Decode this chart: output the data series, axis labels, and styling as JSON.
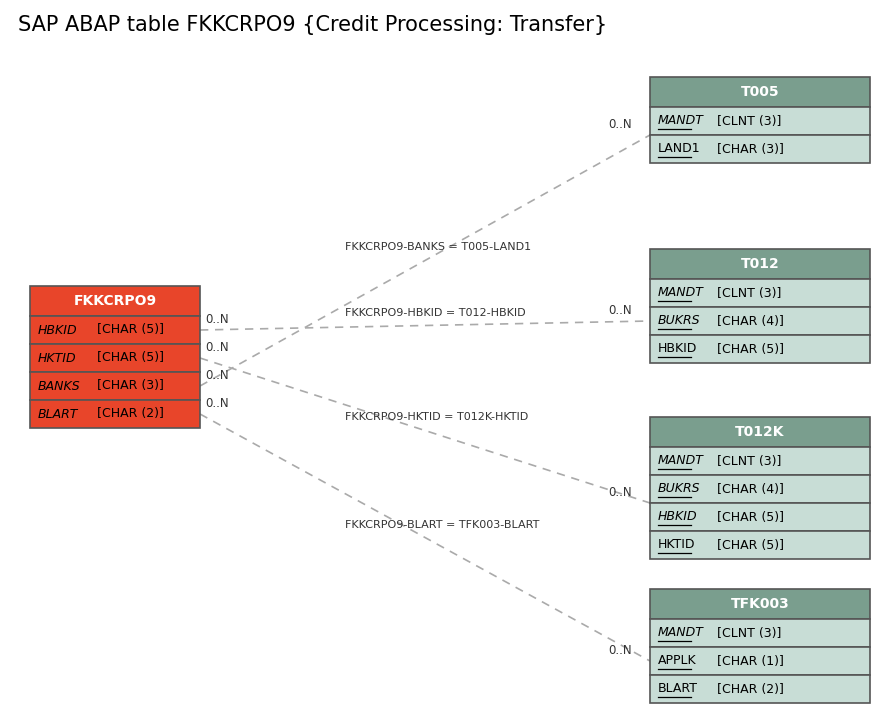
{
  "title": "SAP ABAP table FKKCRPO9 {Credit Processing: Transfer}",
  "title_fontsize": 15,
  "background_color": "#ffffff",
  "main_table": {
    "name": "FKKCRPO9",
    "header_color": "#e8452a",
    "row_color": "#e8452a",
    "header_text_color": "#ffffff",
    "row_text_color": "#000000",
    "fields": [
      {
        "text": "HBKID",
        "type": " [CHAR (5)]",
        "italic": true,
        "underline": false
      },
      {
        "text": "HKTID",
        "type": " [CHAR (5)]",
        "italic": true,
        "underline": false
      },
      {
        "text": "BANKS",
        "type": " [CHAR (3)]",
        "italic": true,
        "underline": false
      },
      {
        "text": "BLART",
        "type": " [CHAR (2)]",
        "italic": true,
        "underline": false
      }
    ]
  },
  "related_tables": [
    {
      "name": "T005",
      "header_color": "#7a9e8e",
      "row_color": "#c8ddd6",
      "fields": [
        {
          "text": "MANDT",
          "type": " [CLNT (3)]",
          "italic": true,
          "underline": true
        },
        {
          "text": "LAND1",
          "type": " [CHAR (3)]",
          "italic": false,
          "underline": true
        }
      ],
      "relation_label": "FKKCRPO9-BANKS = T005-LAND1",
      "from_field_idx": 2,
      "left_cardinality": "0..N",
      "right_cardinality": "0..N"
    },
    {
      "name": "T012",
      "header_color": "#7a9e8e",
      "row_color": "#c8ddd6",
      "fields": [
        {
          "text": "MANDT",
          "type": " [CLNT (3)]",
          "italic": true,
          "underline": true
        },
        {
          "text": "BUKRS",
          "type": " [CHAR (4)]",
          "italic": true,
          "underline": true
        },
        {
          "text": "HBKID",
          "type": " [CHAR (5)]",
          "italic": false,
          "underline": true
        }
      ],
      "relation_label": "FKKCRPO9-HBKID = T012-HBKID",
      "from_field_idx": 0,
      "left_cardinality": "0..N",
      "right_cardinality": "0..N"
    },
    {
      "name": "T012K",
      "header_color": "#7a9e8e",
      "row_color": "#c8ddd6",
      "fields": [
        {
          "text": "MANDT",
          "type": " [CLNT (3)]",
          "italic": true,
          "underline": true
        },
        {
          "text": "BUKRS",
          "type": " [CHAR (4)]",
          "italic": true,
          "underline": true
        },
        {
          "text": "HBKID",
          "type": " [CHAR (5)]",
          "italic": true,
          "underline": true
        },
        {
          "text": "HKTID",
          "type": " [CHAR (5)]",
          "italic": false,
          "underline": true
        }
      ],
      "relation_label": "FKKCRPO9-HKTID = T012K-HKTID",
      "from_field_idx": 1,
      "left_cardinality": "0..N",
      "right_cardinality": "0..N"
    },
    {
      "name": "TFK003",
      "header_color": "#7a9e8e",
      "row_color": "#c8ddd6",
      "fields": [
        {
          "text": "MANDT",
          "type": " [CLNT (3)]",
          "italic": true,
          "underline": true
        },
        {
          "text": "APPLK",
          "type": " [CHAR (1)]",
          "italic": false,
          "underline": true
        },
        {
          "text": "BLART",
          "type": " [CHAR (2)]",
          "italic": false,
          "underline": true
        }
      ],
      "relation_label": "FKKCRPO9-BLART = TFK003-BLART",
      "from_field_idx": 3,
      "left_cardinality": "0..N",
      "right_cardinality": "0..N"
    }
  ],
  "line_color": "#aaaaaa",
  "cardinality_color": "#333333",
  "label_color": "#333333"
}
